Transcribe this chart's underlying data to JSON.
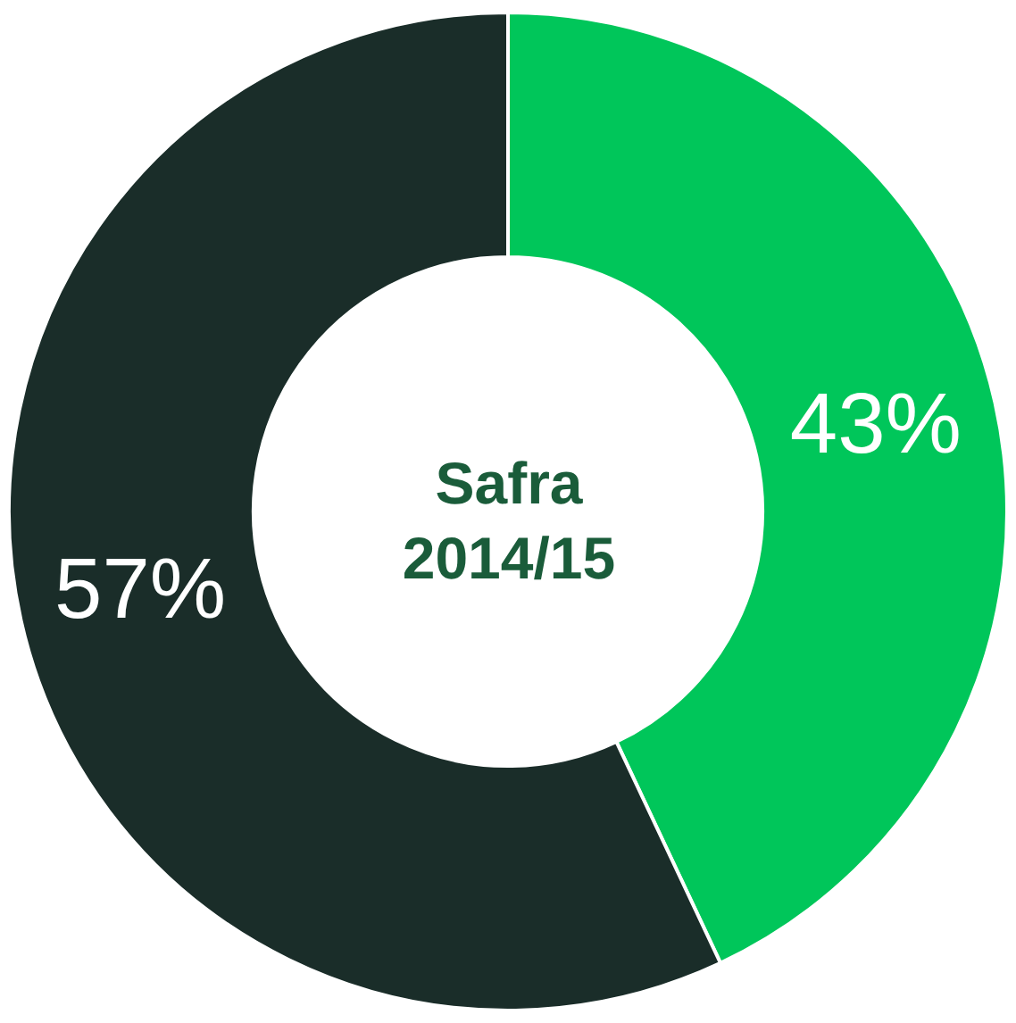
{
  "chart_data": {
    "type": "donut",
    "title": "Safra 2014/15",
    "categories": [
      null,
      null
    ],
    "values": [
      43,
      57
    ],
    "colors": [
      "#00c65a",
      "#1a2d29"
    ],
    "value_labels": [
      "43%",
      "57%"
    ],
    "legend": false
  }
}
